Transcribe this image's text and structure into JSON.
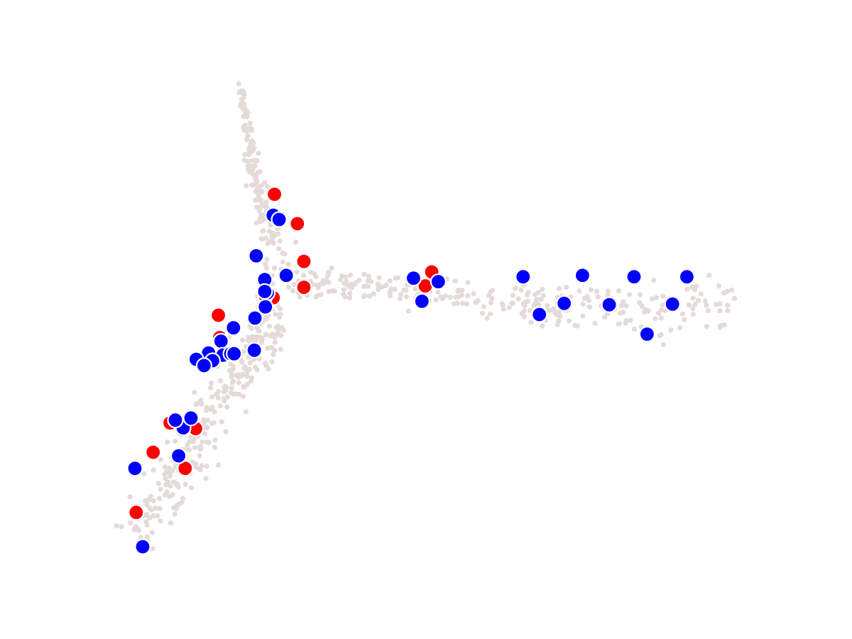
{
  "chart_data": {
    "type": "scatter",
    "title": "",
    "xlabel": "",
    "ylabel": "",
    "axes_visible": false,
    "grid": false,
    "legend": "none",
    "xlim": [
      0,
      100
    ],
    "ylim": [
      0,
      100
    ],
    "background": {
      "name": "all-cells",
      "color": "#e4dbd8",
      "branches": [
        {
          "name": "upper-arm",
          "path": [
            [
              15.7,
              85.8
            ],
            [
              16.7,
              79.6
            ],
            [
              18.1,
              71.6
            ],
            [
              20.2,
              63.8
            ],
            [
              21.8,
              57.7
            ]
          ],
          "spread": [
            0.5,
            0.8,
            1.6,
            2.5,
            3.0
          ],
          "count": 150
        },
        {
          "name": "lower-left-arm",
          "path": [
            [
              21.5,
              54.5
            ],
            [
              18.7,
              48.4
            ],
            [
              13.6,
              42.9
            ],
            [
              8.9,
              35.8
            ],
            [
              4.1,
              27.7
            ],
            [
              -0.4,
              21.4
            ]
          ],
          "spread": [
            3.5,
            3.8,
            3.8,
            3.8,
            3.8,
            4.0
          ],
          "count": 300
        },
        {
          "name": "right-arm",
          "path": [
            [
              23.2,
              57.7
            ],
            [
              36.7,
              57.2
            ],
            [
              51.3,
              56.0
            ],
            [
              65.4,
              54.4
            ],
            [
              79.8,
              53.6
            ],
            [
              91.9,
              55.0
            ]
          ],
          "spread": [
            2.5,
            2.0,
            2.3,
            3.0,
            4.0,
            4.5
          ],
          "count": 300
        }
      ]
    },
    "series": [
      {
        "color": "#ff0000",
        "points": [
          [
            20.9,
            70.4
          ],
          [
            24.4,
            66.2
          ],
          [
            25.4,
            60.8
          ],
          [
            25.4,
            57.1
          ],
          [
            20.7,
            55.6
          ],
          [
            19.5,
            55.9
          ],
          [
            45.0,
            59.3
          ],
          [
            44.0,
            57.3
          ],
          [
            12.5,
            49.9
          ],
          [
            10.9,
            46.9
          ],
          [
            4.9,
            37.7
          ],
          [
            2.3,
            33.5
          ],
          [
            7.2,
            31.2
          ],
          [
            -0.3,
            24.9
          ],
          [
            8.8,
            36.9
          ],
          [
            12.3,
            53.1
          ]
        ]
      },
      {
        "color": "#0000ff",
        "points": [
          [
            20.7,
            67.4
          ],
          [
            21.6,
            66.8
          ],
          [
            18.1,
            61.6
          ],
          [
            19.4,
            58.2
          ],
          [
            19.8,
            56.3
          ],
          [
            19.4,
            56.5
          ],
          [
            22.7,
            58.8
          ],
          [
            14.6,
            51.3
          ],
          [
            17.9,
            52.7
          ],
          [
            12.7,
            49.4
          ],
          [
            10.8,
            47.7
          ],
          [
            13.0,
            47.4
          ],
          [
            11.4,
            46.6
          ],
          [
            8.9,
            46.8
          ],
          [
            10.1,
            45.9
          ],
          [
            14.2,
            47.6
          ],
          [
            14.7,
            47.6
          ],
          [
            17.8,
            48.1
          ],
          [
            6.9,
            37.0
          ],
          [
            5.7,
            38.1
          ],
          [
            8.1,
            38.4
          ],
          [
            6.2,
            33.0
          ],
          [
            -0.5,
            31.2
          ],
          [
            0.7,
            20.0
          ],
          [
            42.2,
            58.4
          ],
          [
            46.0,
            57.9
          ],
          [
            43.5,
            55.1
          ],
          [
            59.0,
            58.6
          ],
          [
            68.1,
            58.8
          ],
          [
            65.3,
            54.8
          ],
          [
            61.5,
            53.2
          ],
          [
            76.0,
            58.6
          ],
          [
            72.2,
            54.6
          ],
          [
            81.9,
            54.7
          ],
          [
            84.1,
            58.6
          ],
          [
            78.0,
            50.4
          ],
          [
            19.5,
            54.3
          ]
        ]
      }
    ]
  }
}
